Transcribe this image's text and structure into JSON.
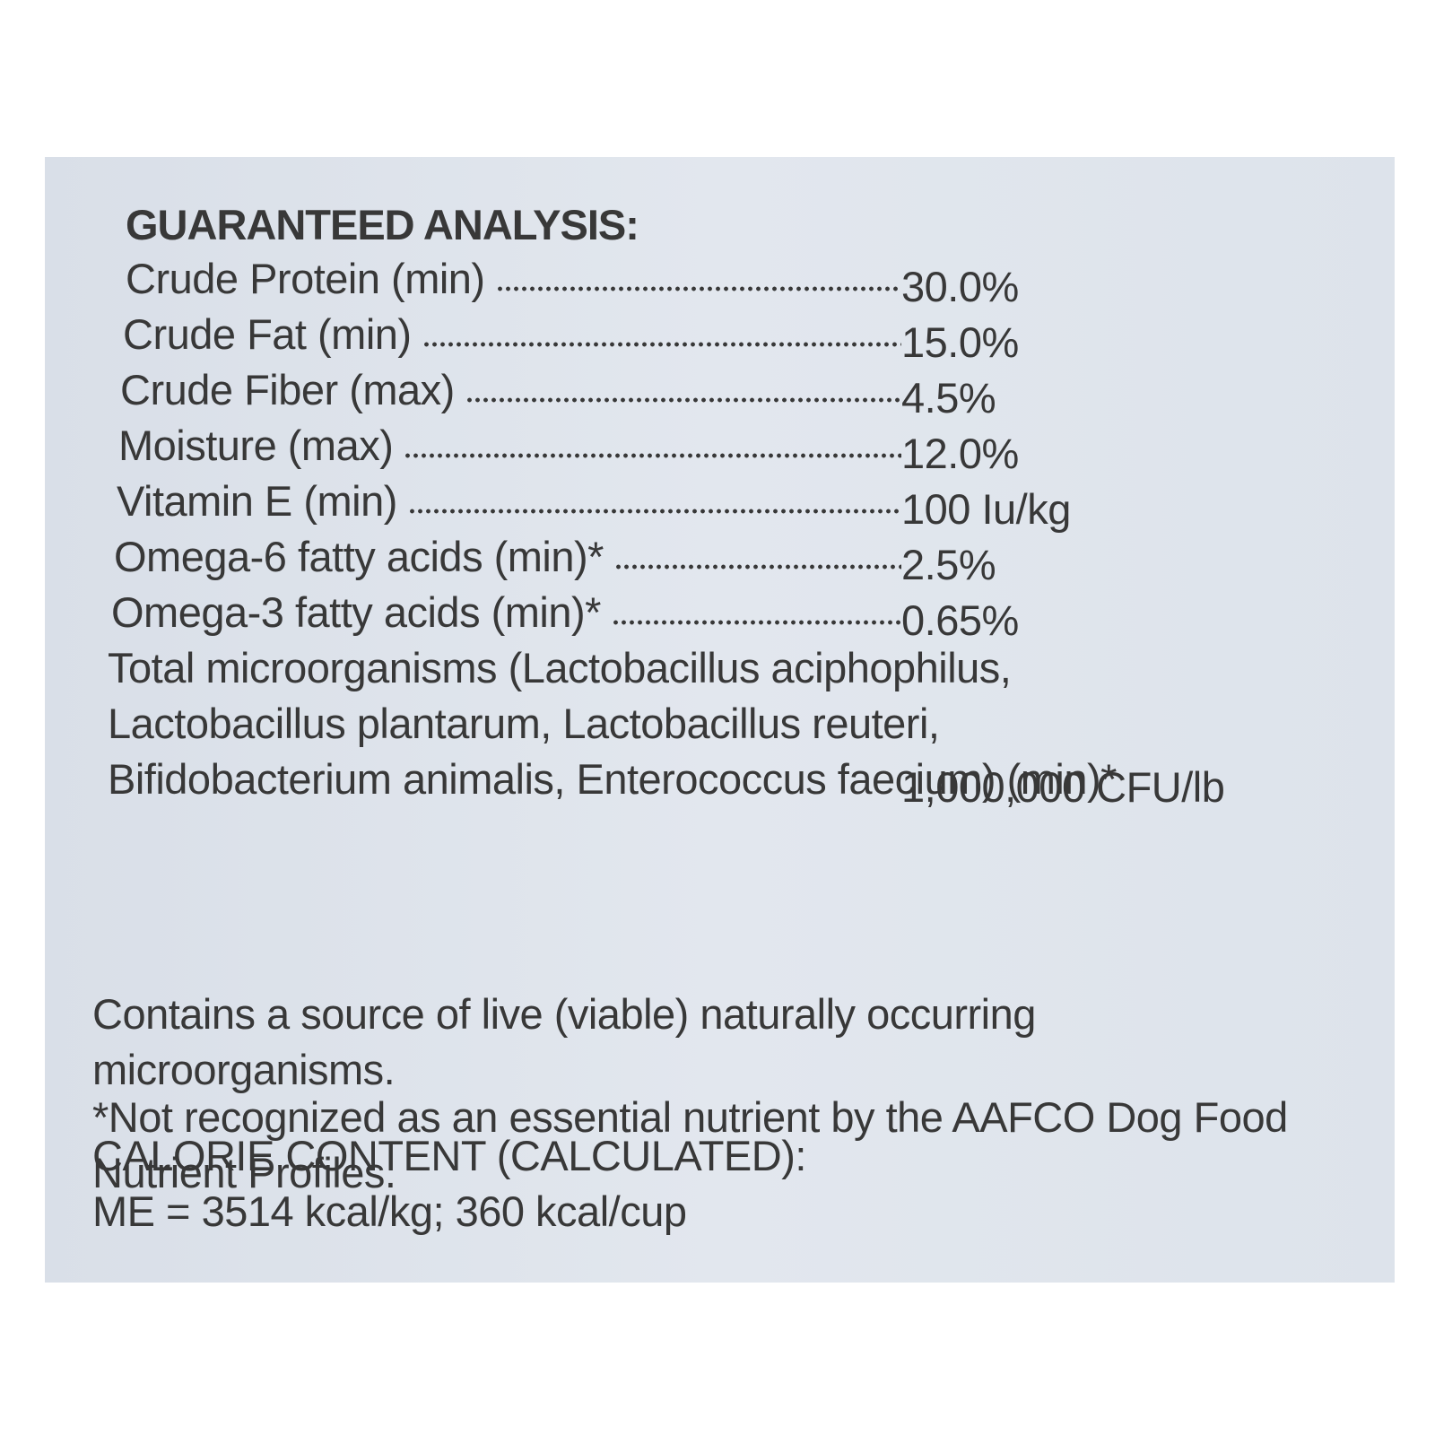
{
  "heading": "GUARANTEED ANALYSIS:",
  "rows": [
    {
      "label": "Crude Protein (min)",
      "value": "30.0%"
    },
    {
      "label": "Crude Fat (min)",
      "value": "15.0%"
    },
    {
      "label": "Crude Fiber (max)",
      "value": "4.5%"
    },
    {
      "label": "Moisture (max)",
      "value": "12.0%"
    },
    {
      "label": "Vitamin E (min)",
      "value": "100 Iu/kg"
    },
    {
      "label": "Omega-6 fatty acids (min)*",
      "value": "2.5%"
    },
    {
      "label": "Omega-3 fatty acids (min)*",
      "value": "0.65%"
    },
    {
      "label": "Total microorganisms (Lactobacillus aciphophilus, Lactobacillus plantarum, Lactobacillus reuteri, Bifidobacterium animalis, Enterococcus faecium) (min)*",
      "value": "1,000,000 CFU/lb"
    }
  ],
  "note": "*Not recognized as an essential nutrient by the AAFCO Dog Food Nutrient Profiles.",
  "live_culture": "Contains a source of live (viable) naturally occurring microorganisms.",
  "calorie": {
    "title": "CALORIE CONTENT (CALCULATED):",
    "value": "ME = 3514 kcal/kg; 360 kcal/cup"
  }
}
